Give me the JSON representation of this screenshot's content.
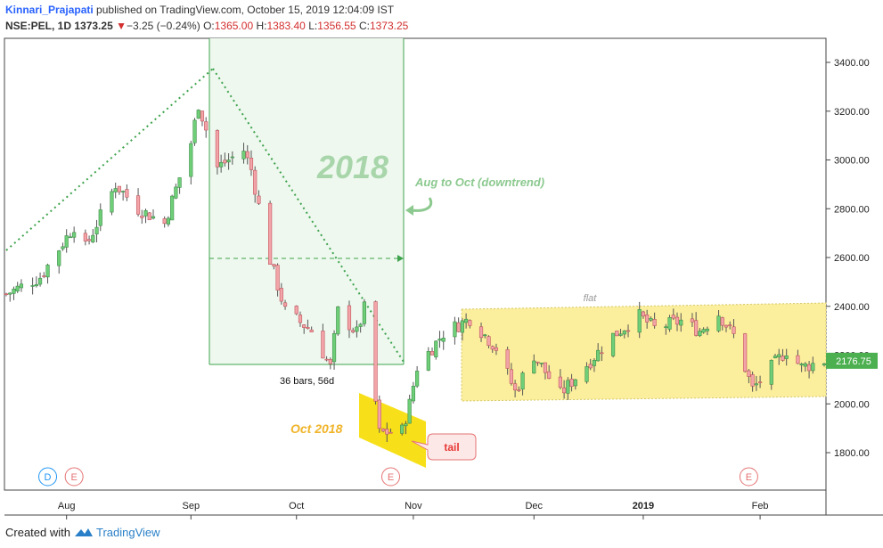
{
  "header": {
    "author": "Kinnari_Prajapati",
    "published_text": "published on TradingView.com, October 15, 2019 12:04:09 IST",
    "symbol": "NSE:PEL, 1D",
    "last": "1373.25",
    "change_arrow": "▼",
    "change": "−3.25 (−0.24%)",
    "o_label": "O:",
    "o_value": "1365.00",
    "h_label": "H:",
    "h_value": "1383.40",
    "l_label": "L:",
    "l_value": "1356.55",
    "c_label": "C:",
    "c_value": "1373.25"
  },
  "footer": {
    "created_with": "Created with",
    "brand": "TradingView",
    "logo_icon": "tradingview-logo-icon"
  },
  "colors": {
    "up": "#6fcf78",
    "down": "#f2a4a8",
    "wick": "#555555",
    "trend": "#3fa34d",
    "box_fill": "#eef8ef",
    "box_line": "#3fa34d",
    "channel": "#fbee9c",
    "flag": "#f7e01a",
    "annotation_orange": "#f0b429",
    "annotation_green": "#8cc98f",
    "price_badge": "#4caf50",
    "event_red": "#e57373",
    "event_blue": "#2196f3"
  },
  "chart_data": {
    "type": "candlestick",
    "title": "",
    "ylim": [
      1640,
      3500
    ],
    "y_ticks": [
      "3400.00",
      "3200.00",
      "3000.00",
      "2800.00",
      "2600.00",
      "2400.00",
      "2200.00",
      "2000.00",
      "1800.00"
    ],
    "y_tick_values": [
      3400,
      3200,
      3000,
      2800,
      2600,
      2400,
      2200,
      2000,
      1800
    ],
    "x_range": [
      "2018-07-16",
      "2019-02-18"
    ],
    "x_ticks": [
      "Aug",
      "Sep",
      "Oct",
      "Nov",
      "Dec",
      "2019",
      "Feb"
    ],
    "x_tick_dates": [
      "2018-08-01",
      "2018-09-03",
      "2018-10-01",
      "2018-11-01",
      "2018-12-03",
      "2019-01-01",
      "2019-02-01"
    ],
    "last_price": "2176.75",
    "last_price_value": 2176.75,
    "event_markers": [
      {
        "label": "D",
        "date": "2018-07-27",
        "kind": "dividend"
      },
      {
        "label": "E",
        "date": "2018-08-03",
        "kind": "earnings"
      },
      {
        "label": "E",
        "date": "2018-10-26",
        "kind": "earnings"
      },
      {
        "label": "E",
        "date": "2019-01-29",
        "kind": "earnings"
      }
    ],
    "anchors": [
      {
        "date": "2018-07-16",
        "price": 2450
      },
      {
        "date": "2018-07-25",
        "price": 2520
      },
      {
        "date": "2018-08-03",
        "price": 2730
      },
      {
        "date": "2018-08-06",
        "price": 2640
      },
      {
        "date": "2018-08-14",
        "price": 2900
      },
      {
        "date": "2018-08-20",
        "price": 2800
      },
      {
        "date": "2018-08-27",
        "price": 2740
      },
      {
        "date": "2018-09-03",
        "price": 3070
      },
      {
        "date": "2018-09-05",
        "price": 3230
      },
      {
        "date": "2018-09-10",
        "price": 2970
      },
      {
        "date": "2018-09-17",
        "price": 3040
      },
      {
        "date": "2018-09-19",
        "price": 2960
      },
      {
        "date": "2018-09-24",
        "price": 2590
      },
      {
        "date": "2018-09-28",
        "price": 2380
      },
      {
        "date": "2018-10-05",
        "price": 2300
      },
      {
        "date": "2018-10-10",
        "price": 2150
      },
      {
        "date": "2018-10-12",
        "price": 2380
      },
      {
        "date": "2018-10-17",
        "price": 2290
      },
      {
        "date": "2018-10-19",
        "price": 2390
      },
      {
        "date": "2018-10-23",
        "price": 1880
      },
      {
        "date": "2018-10-29",
        "price": 1890
      },
      {
        "date": "2018-10-31",
        "price": 2000
      },
      {
        "date": "2018-11-02",
        "price": 2150
      },
      {
        "date": "2018-11-09",
        "price": 2290
      },
      {
        "date": "2018-11-16",
        "price": 2350
      },
      {
        "date": "2018-11-23",
        "price": 2230
      },
      {
        "date": "2018-11-28",
        "price": 2050
      },
      {
        "date": "2018-12-03",
        "price": 2200
      },
      {
        "date": "2018-12-10",
        "price": 2040
      },
      {
        "date": "2018-12-17",
        "price": 2160
      },
      {
        "date": "2018-12-24",
        "price": 2280
      },
      {
        "date": "2018-12-31",
        "price": 2360
      },
      {
        "date": "2019-01-04",
        "price": 2310
      },
      {
        "date": "2019-01-11",
        "price": 2340
      },
      {
        "date": "2019-01-16",
        "price": 2300
      },
      {
        "date": "2019-01-21",
        "price": 2370
      },
      {
        "date": "2019-01-25",
        "price": 2280
      },
      {
        "date": "2019-01-30",
        "price": 2060
      },
      {
        "date": "2019-02-04",
        "price": 2150
      },
      {
        "date": "2019-02-08",
        "price": 2220
      },
      {
        "date": "2019-02-12",
        "price": 2150
      },
      {
        "date": "2019-02-18",
        "price": 2177
      }
    ]
  },
  "annotations": {
    "year_label": "2018",
    "downtrend_label": "Aug to Oct (downtrend)",
    "bars_label": "36 bars, 56d",
    "oct_label": "Oct 2018",
    "tail_label": "tail",
    "flat_label": "flat",
    "curved_arrow_icon": "curved-arrow-icon"
  }
}
